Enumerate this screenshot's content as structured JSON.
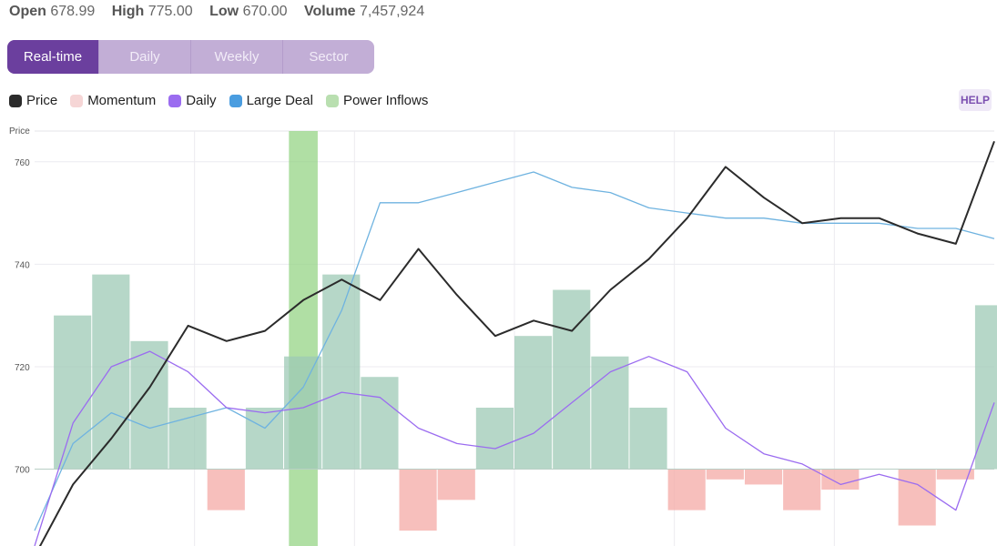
{
  "stats": [
    {
      "label": "Open",
      "value": "678.99"
    },
    {
      "label": "High",
      "value": "775.00"
    },
    {
      "label": "Low",
      "value": "670.00"
    },
    {
      "label": "Volume",
      "value": "7,457,924"
    }
  ],
  "tabs": [
    {
      "label": "Real-time",
      "active": true
    },
    {
      "label": "Daily",
      "active": false
    },
    {
      "label": "Weekly",
      "active": false
    },
    {
      "label": "Sector",
      "active": false
    }
  ],
  "legend": [
    {
      "label": "Price",
      "color": "#2b2b2b"
    },
    {
      "label": "Momentum",
      "color": "#f6d6d6"
    },
    {
      "label": "Daily",
      "color": "#9b6cf0"
    },
    {
      "label": "Large Deal",
      "color": "#4a9de0"
    },
    {
      "label": "Power Inflows",
      "color": "#b9dfb0"
    }
  ],
  "help_label": "HELP",
  "chart_data": {
    "type": "line",
    "ylabel": "Price",
    "y_ticks": [
      700,
      720,
      740,
      760
    ],
    "ylim": [
      685,
      766
    ],
    "x": [
      0,
      4,
      8,
      12,
      16,
      20,
      24,
      28,
      32,
      36,
      40,
      44,
      48,
      52,
      56,
      60,
      64,
      68,
      72,
      76,
      80,
      84,
      88,
      92,
      96,
      100
    ],
    "series": [
      {
        "name": "Price",
        "color": "#2b2b2b",
        "values": [
          683,
          697,
          706,
          716,
          728,
          725,
          727,
          733,
          737,
          733,
          743,
          734,
          726,
          729,
          727,
          735,
          741,
          749,
          759,
          753,
          748,
          749,
          749,
          746,
          744,
          764
        ]
      },
      {
        "name": "Daily",
        "color": "#9b6cf0",
        "values": [
          685,
          709,
          720,
          723,
          719,
          712,
          711,
          712,
          715,
          714,
          708,
          705,
          704,
          707,
          713,
          719,
          722,
          719,
          708,
          703,
          701,
          697,
          699,
          697,
          692,
          713
        ]
      },
      {
        "name": "Large Deal",
        "color": "#6fb3e0",
        "values": [
          688,
          705,
          711,
          708,
          710,
          712,
          708,
          716,
          731,
          752,
          752,
          754,
          756,
          758,
          755,
          754,
          751,
          750,
          749,
          749,
          748,
          748,
          748,
          747,
          747,
          745
        ]
      },
      {
        "name": "Momentum",
        "color": "#9ec9b6",
        "negative_color": "#f4aaa6",
        "values": [
          0,
          30,
          38,
          25,
          12,
          -8,
          12,
          22,
          38,
          18,
          -12,
          -6,
          12,
          26,
          35,
          22,
          12,
          -8,
          -2,
          -3,
          -8,
          -4,
          0,
          -11,
          -2,
          32
        ]
      }
    ],
    "power_inflow_band": {
      "x_range": [
        26.5,
        29.5
      ]
    }
  }
}
